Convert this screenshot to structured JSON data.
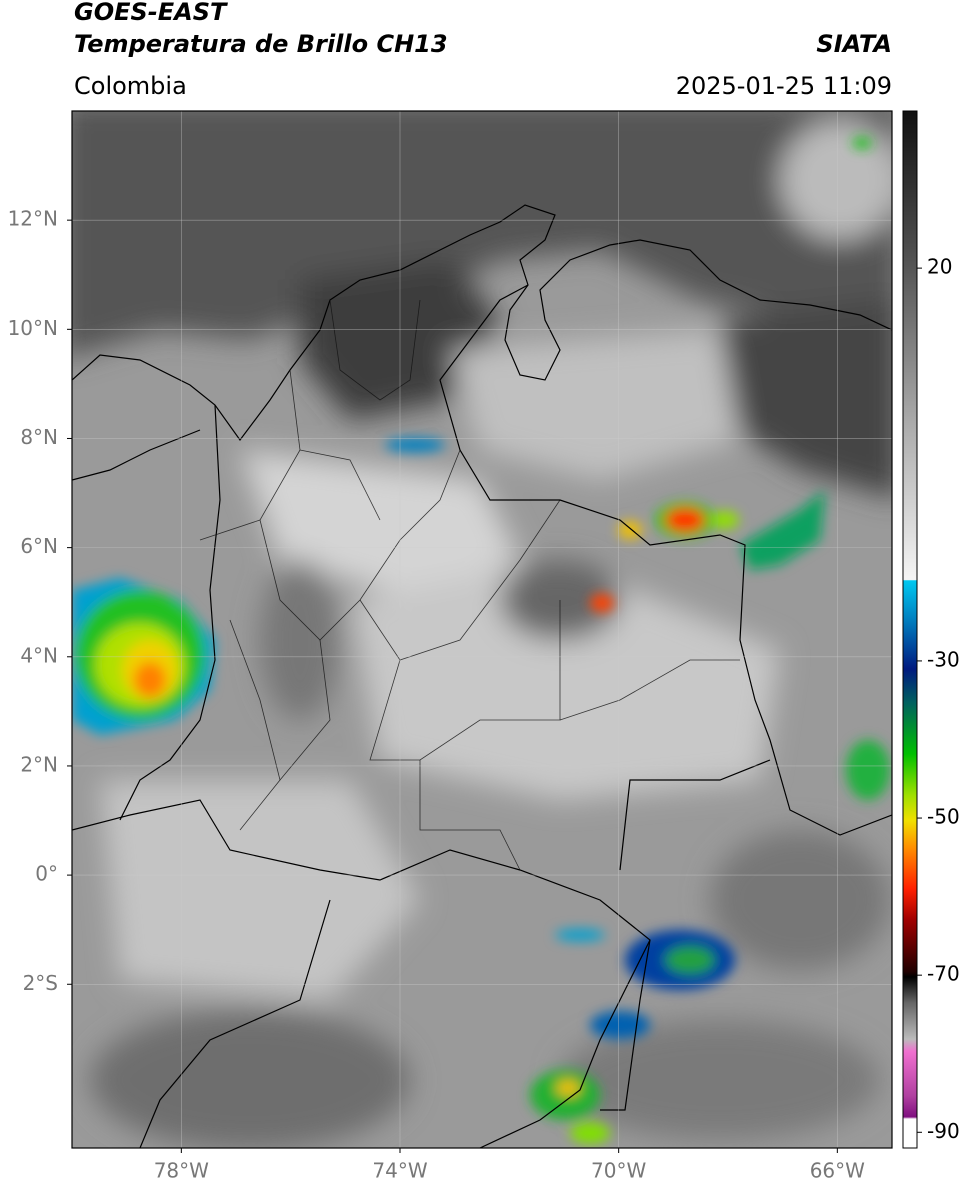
{
  "header": {
    "title": "GOES-EAST",
    "subtitle": "Temperatura de Brillo CH13",
    "source": "SIATA",
    "region": "Colombia",
    "datetime": "2025-01-25 11:09"
  },
  "map": {
    "xlim": [
      -80,
      -65
    ],
    "ylim": [
      -5,
      14
    ],
    "grid": true,
    "xticks": [
      {
        "value": -78,
        "label": "78°W"
      },
      {
        "value": -74,
        "label": "74°W"
      },
      {
        "value": -70,
        "label": "70°W"
      },
      {
        "value": -66,
        "label": "66°W"
      }
    ],
    "yticks": [
      {
        "value": 12,
        "label": "12°N"
      },
      {
        "value": 10,
        "label": "10°N"
      },
      {
        "value": 8,
        "label": "8°N"
      },
      {
        "value": 6,
        "label": "6°N"
      },
      {
        "value": 4,
        "label": "4°N"
      },
      {
        "value": 2,
        "label": "2°N"
      },
      {
        "value": 0,
        "label": "0°"
      },
      {
        "value": -2,
        "label": "2°S"
      }
    ]
  },
  "colorbar": {
    "lim": [
      -92,
      40
    ],
    "ticks": [
      20,
      -30,
      -50,
      -70,
      -90
    ]
  }
}
